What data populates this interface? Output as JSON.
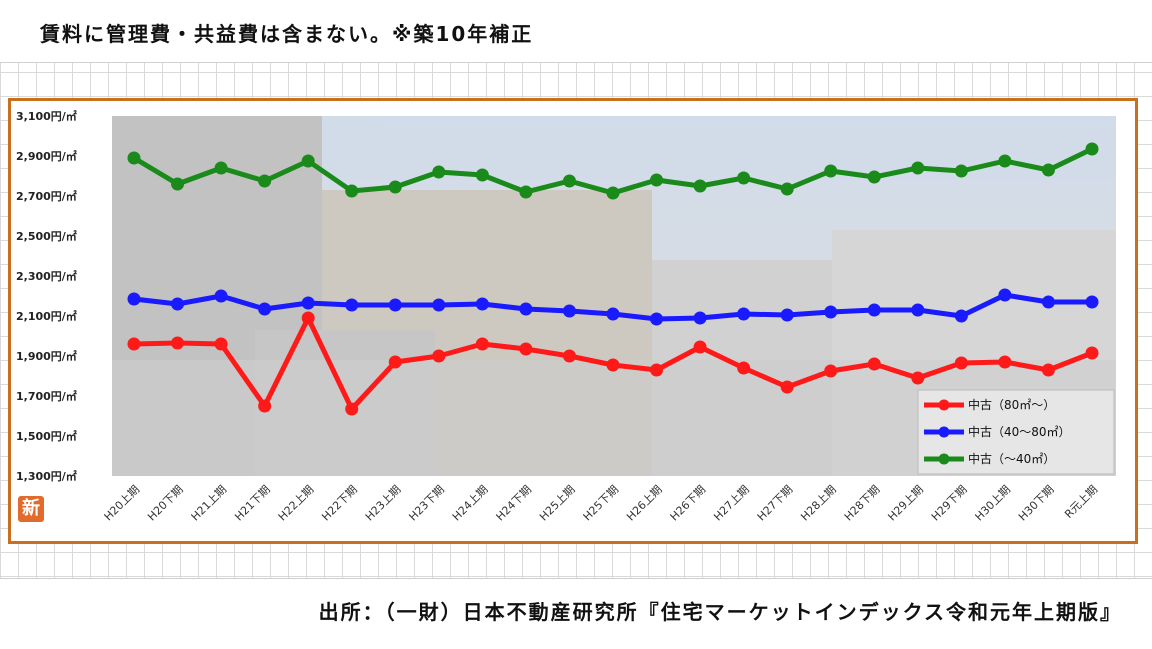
{
  "header": {
    "note": "賃料に管理費・共益費は含まない。※築10年補正"
  },
  "footer": {
    "source": "出所：（一財）日本不動産研究所『住宅マーケットインデックス令和元年上期版』"
  },
  "badge": {
    "label": "新"
  },
  "chart_data": {
    "type": "line",
    "title": "",
    "xlabel": "",
    "ylabel": "",
    "ylim": [
      1300,
      3100
    ],
    "y_ticks": [
      3100,
      2900,
      2700,
      2500,
      2300,
      2100,
      1900,
      1700,
      1500,
      1300
    ],
    "y_tick_labels": [
      "3,100円/㎡",
      "2,900円/㎡",
      "2,700円/㎡",
      "2,500円/㎡",
      "2,300円/㎡",
      "2,100円/㎡",
      "1,900円/㎡",
      "1,700円/㎡",
      "1,500円/㎡",
      "1,300円/㎡"
    ],
    "categories": [
      "H20上期",
      "H20下期",
      "H21上期",
      "H21下期",
      "H22上期",
      "H22下期",
      "H23上期",
      "H23下期",
      "H24上期",
      "H24下期",
      "H25上期",
      "H25下期",
      "H26上期",
      "H26下期",
      "H27上期",
      "H27下期",
      "H28上期",
      "H28下期",
      "H29上期",
      "H29下期",
      "H30上期",
      "H30下期",
      "R元上期"
    ],
    "legend_position": "bottom-right",
    "grid": false,
    "series": [
      {
        "name": "中古（80㎡～）",
        "color": "#ff1a1a",
        "values": [
          1960,
          1965,
          1960,
          1650,
          2090,
          1635,
          1870,
          1900,
          1960,
          1935,
          1900,
          1855,
          1830,
          1945,
          1840,
          1745,
          1825,
          1860,
          1790,
          1865,
          1870,
          1830,
          1915
        ]
      },
      {
        "name": "中古（40～80㎡）",
        "color": "#1a1aff",
        "values": [
          2185,
          2160,
          2200,
          2135,
          2165,
          2155,
          2155,
          2155,
          2160,
          2135,
          2125,
          2110,
          2085,
          2090,
          2110,
          2105,
          2120,
          2130,
          2130,
          2100,
          2205,
          2170,
          2170
        ]
      },
      {
        "name": "中古（～40㎡）",
        "color": "#1a8a1a",
        "values": [
          2890,
          2760,
          2840,
          2775,
          2875,
          2725,
          2745,
          2820,
          2805,
          2720,
          2775,
          2715,
          2780,
          2750,
          2790,
          2735,
          2825,
          2795,
          2840,
          2825,
          2875,
          2830,
          2935
        ]
      }
    ]
  }
}
